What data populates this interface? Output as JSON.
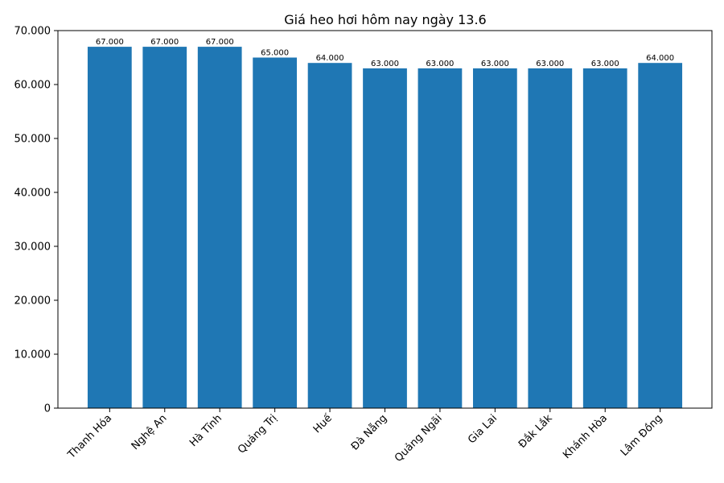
{
  "chart_data": {
    "type": "bar",
    "title": "Giá heo hơi hôm nay ngày 13.6",
    "xlabel": "",
    "ylabel": "",
    "categories": [
      "Thanh Hóa",
      "Nghệ An",
      "Hà Tĩnh",
      "Quảng Trị",
      "Huế",
      "Đà Nẵng",
      "Quảng Ngãi",
      "Gia Lai",
      "Đắk Lắk",
      "Khánh Hòa",
      "Lâm Đồng"
    ],
    "values": [
      67000,
      67000,
      67000,
      65000,
      64000,
      63000,
      63000,
      63000,
      63000,
      63000,
      64000
    ],
    "value_labels": [
      "67.000",
      "67.000",
      "67.000",
      "65.000",
      "64.000",
      "63.000",
      "63.000",
      "63.000",
      "63.000",
      "63.000",
      "64.000"
    ],
    "ylim": [
      0,
      70000
    ],
    "yticks": [
      0,
      10000,
      20000,
      30000,
      40000,
      50000,
      60000,
      70000
    ],
    "ytick_labels": [
      "0",
      "10.000",
      "20.000",
      "30.000",
      "40.000",
      "50.000",
      "60.000",
      "70.000"
    ],
    "grid": false,
    "bar_color": "#1f77b4"
  }
}
